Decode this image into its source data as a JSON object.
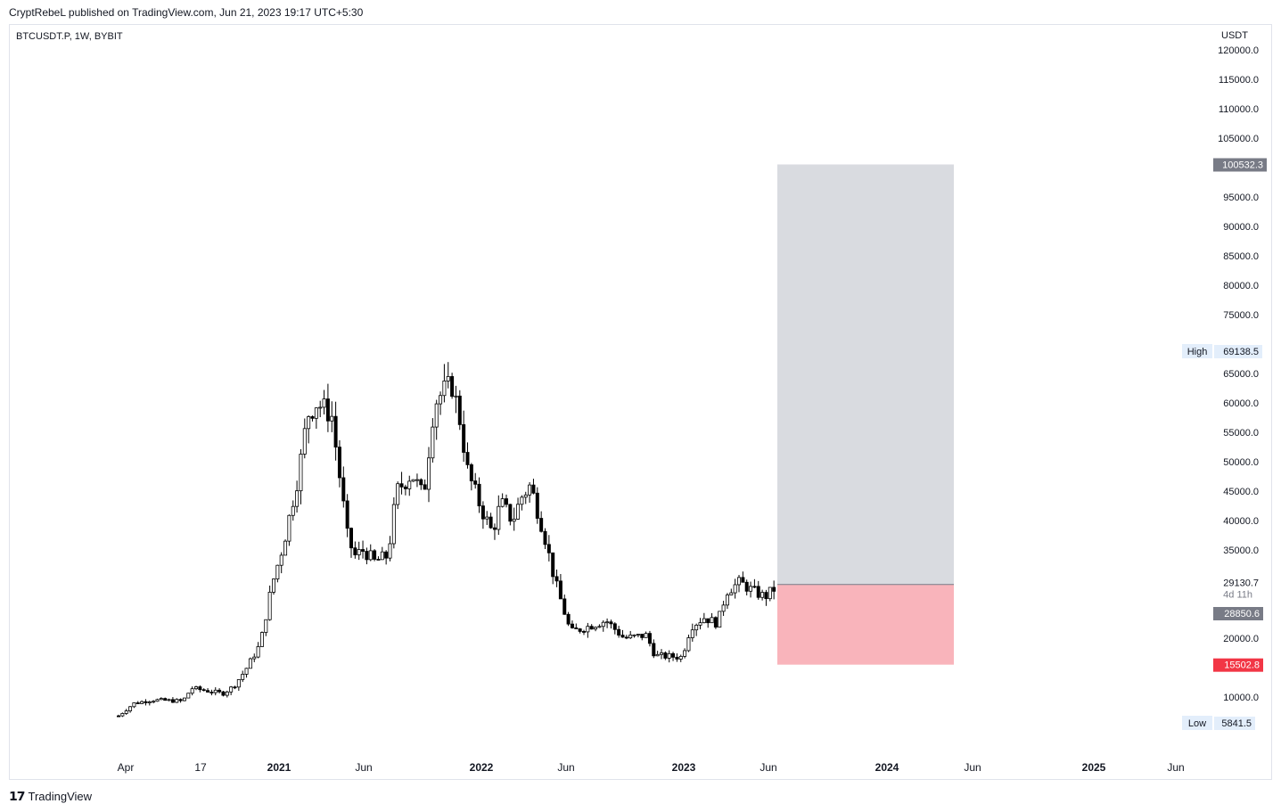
{
  "header": {
    "publisher_line": "CryptRebeL published on TradingView.com, Jun 21, 2023 19:17 UTC+5:30",
    "symbol": "BTCUSDT.P, 1W, BYBIT",
    "currency": "USDT"
  },
  "footer": {
    "brand": "TradingView"
  },
  "colors": {
    "up": "#ffffff",
    "down": "#000000",
    "wick": "#000000",
    "target_zone": "#d9dbe0",
    "stop_zone": "#f9b4bb",
    "price_label": "#787b86",
    "stop_label": "#f23645",
    "hilo_label": "#e3eefb"
  },
  "chart_data": {
    "type": "candlestick",
    "title": "",
    "xlabel": "",
    "ylabel": "USDT",
    "ylim": [
      3000,
      123000
    ],
    "y_ticks": [
      "120000.0",
      "115000.0",
      "110000.0",
      "105000.0",
      "95000.0",
      "90000.0",
      "85000.0",
      "80000.0",
      "75000.0",
      "65000.0",
      "60000.0",
      "55000.0",
      "50000.0",
      "45000.0",
      "40000.0",
      "35000.0",
      "20000.0",
      "10000.0"
    ],
    "x_ticks": [
      "Apr",
      "17",
      "2021",
      "Jun",
      "2022",
      "Jun",
      "2023",
      "Jun",
      "2024",
      "Jun",
      "2025",
      "Jun"
    ],
    "x_ticks_bold": [
      "2021",
      "2022",
      "2023",
      "2024",
      "2025"
    ],
    "series_summary": [
      {
        "period": "Apr 2020",
        "price": 6800
      },
      {
        "period": "Oct 2020",
        "price": 11500
      },
      {
        "period": "Jan 2021",
        "price": 33000
      },
      {
        "period": "Apr 2021",
        "price": 60000
      },
      {
        "period": "Jul 2021",
        "price": 32000
      },
      {
        "period": "Nov 2021",
        "price": 65000
      },
      {
        "period": "Jun 2022",
        "price": 20000
      },
      {
        "period": "Dec 2022",
        "price": 16500
      },
      {
        "period": "Apr 2023",
        "price": 29500
      },
      {
        "period": "Jun 2023",
        "price": 28850
      }
    ],
    "position": {
      "entry": 29130.7,
      "target": 100532.3,
      "stop": 15502.8,
      "start": "Jun 2023",
      "end": "Apr 2024"
    },
    "price_labels": {
      "target": "100532.3",
      "last_price": "29130.7",
      "countdown": "4d 11h",
      "current": "28850.6",
      "stop": "15502.8",
      "high_tag": "High",
      "high_value": "69138.5",
      "low_tag": "Low",
      "low_value": "5841.5"
    }
  }
}
